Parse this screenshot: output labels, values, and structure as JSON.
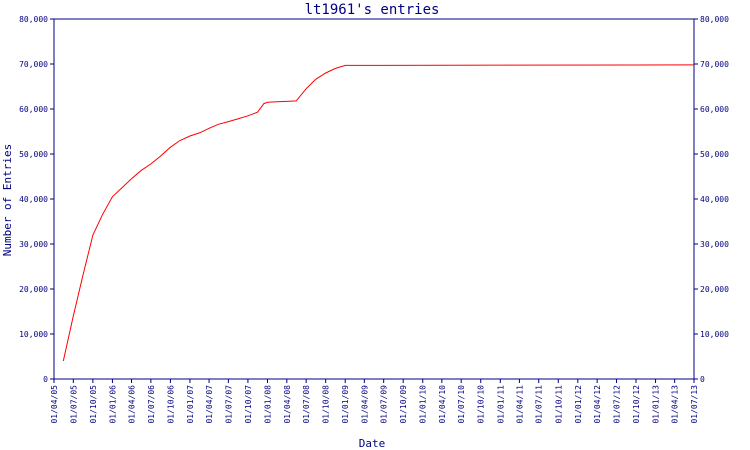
{
  "chart_data": {
    "type": "line",
    "title": "lt1961's entries",
    "xlabel": "Date",
    "ylabel": "Number of Entries",
    "ylim": [
      0,
      80000
    ],
    "xlim": [
      "2005-04-01",
      "2013-07-01"
    ],
    "grid": false,
    "legend": "none",
    "line_color": "#ff0000",
    "axis_color": "#000080",
    "y_ticks": [
      {
        "value": 0,
        "label": "0"
      },
      {
        "value": 10000,
        "label": "10,000"
      },
      {
        "value": 20000,
        "label": "20,000"
      },
      {
        "value": 30000,
        "label": "30,000"
      },
      {
        "value": 40000,
        "label": "40,000"
      },
      {
        "value": 50000,
        "label": "50,000"
      },
      {
        "value": 60000,
        "label": "60,000"
      },
      {
        "value": 70000,
        "label": "70,000"
      },
      {
        "value": 80000,
        "label": "80,000"
      }
    ],
    "x_ticks": [
      {
        "date": "2005-04-01",
        "label": "01/04/05"
      },
      {
        "date": "2005-07-01",
        "label": "01/07/05"
      },
      {
        "date": "2005-10-01",
        "label": "01/10/05"
      },
      {
        "date": "2006-01-01",
        "label": "01/01/06"
      },
      {
        "date": "2006-04-01",
        "label": "01/04/06"
      },
      {
        "date": "2006-07-01",
        "label": "01/07/06"
      },
      {
        "date": "2006-10-01",
        "label": "01/10/06"
      },
      {
        "date": "2007-01-01",
        "label": "01/01/07"
      },
      {
        "date": "2007-04-01",
        "label": "01/04/07"
      },
      {
        "date": "2007-07-01",
        "label": "01/07/07"
      },
      {
        "date": "2007-10-01",
        "label": "01/10/07"
      },
      {
        "date": "2008-01-01",
        "label": "01/01/08"
      },
      {
        "date": "2008-04-01",
        "label": "01/04/08"
      },
      {
        "date": "2008-07-01",
        "label": "01/07/08"
      },
      {
        "date": "2008-10-01",
        "label": "01/10/08"
      },
      {
        "date": "2009-01-01",
        "label": "01/01/09"
      },
      {
        "date": "2009-04-01",
        "label": "01/04/09"
      },
      {
        "date": "2009-07-01",
        "label": "01/07/09"
      },
      {
        "date": "2009-10-01",
        "label": "01/10/09"
      },
      {
        "date": "2010-01-01",
        "label": "01/01/10"
      },
      {
        "date": "2010-04-01",
        "label": "01/04/10"
      },
      {
        "date": "2010-07-01",
        "label": "01/07/10"
      },
      {
        "date": "2010-10-01",
        "label": "01/10/10"
      },
      {
        "date": "2011-01-01",
        "label": "01/01/11"
      },
      {
        "date": "2011-04-01",
        "label": "01/04/11"
      },
      {
        "date": "2011-07-01",
        "label": "01/07/11"
      },
      {
        "date": "2011-10-01",
        "label": "01/10/11"
      },
      {
        "date": "2012-01-01",
        "label": "01/01/12"
      },
      {
        "date": "2012-04-01",
        "label": "01/04/12"
      },
      {
        "date": "2012-07-01",
        "label": "01/07/12"
      },
      {
        "date": "2012-10-01",
        "label": "01/10/12"
      },
      {
        "date": "2013-01-01",
        "label": "01/01/13"
      },
      {
        "date": "2013-04-01",
        "label": "01/04/13"
      },
      {
        "date": "2013-07-01",
        "label": "01/07/13"
      }
    ],
    "series": [
      {
        "points": [
          {
            "x": "2005-05-15",
            "y": 4000
          },
          {
            "x": "2005-07-01",
            "y": 14000
          },
          {
            "x": "2005-08-15",
            "y": 23000
          },
          {
            "x": "2005-10-01",
            "y": 32000
          },
          {
            "x": "2005-11-15",
            "y": 36500
          },
          {
            "x": "2006-01-01",
            "y": 40500
          },
          {
            "x": "2006-02-15",
            "y": 42500
          },
          {
            "x": "2006-04-01",
            "y": 44500
          },
          {
            "x": "2006-05-15",
            "y": 46300
          },
          {
            "x": "2006-07-01",
            "y": 47800
          },
          {
            "x": "2006-08-15",
            "y": 49500
          },
          {
            "x": "2006-10-01",
            "y": 51500
          },
          {
            "x": "2006-11-15",
            "y": 53000
          },
          {
            "x": "2007-01-01",
            "y": 54000
          },
          {
            "x": "2007-02-15",
            "y": 54700
          },
          {
            "x": "2007-04-01",
            "y": 55700
          },
          {
            "x": "2007-05-15",
            "y": 56600
          },
          {
            "x": "2007-07-01",
            "y": 57200
          },
          {
            "x": "2007-08-15",
            "y": 57800
          },
          {
            "x": "2007-10-01",
            "y": 58500
          },
          {
            "x": "2007-11-15",
            "y": 59300
          },
          {
            "x": "2007-12-15",
            "y": 61200
          },
          {
            "x": "2008-01-01",
            "y": 61500
          },
          {
            "x": "2008-02-15",
            "y": 61600
          },
          {
            "x": "2008-04-01",
            "y": 61700
          },
          {
            "x": "2008-05-15",
            "y": 61800
          },
          {
            "x": "2008-07-01",
            "y": 64500
          },
          {
            "x": "2008-08-15",
            "y": 66600
          },
          {
            "x": "2008-10-01",
            "y": 68000
          },
          {
            "x": "2008-11-15",
            "y": 69000
          },
          {
            "x": "2009-01-01",
            "y": 69700
          },
          {
            "x": "2013-07-01",
            "y": 69800
          }
        ]
      }
    ]
  }
}
